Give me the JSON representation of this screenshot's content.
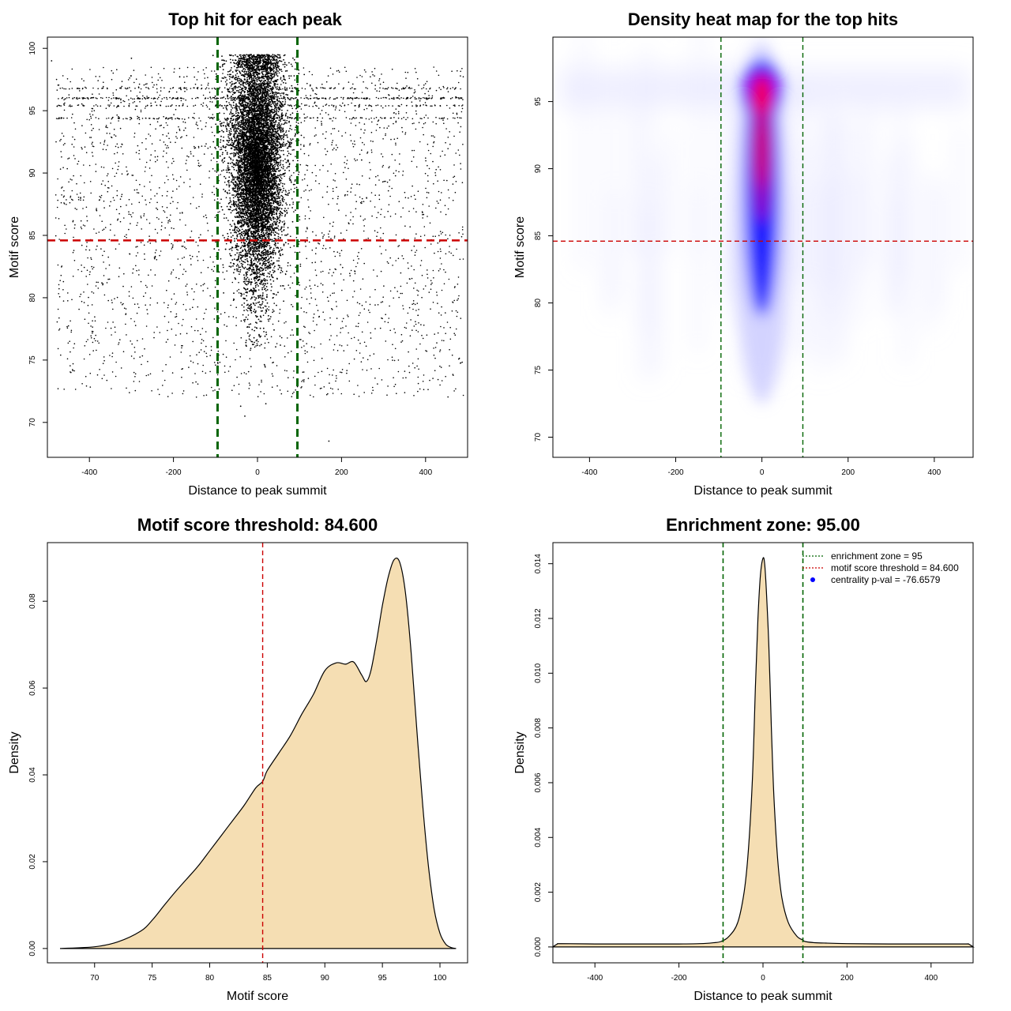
{
  "chart_data": [
    {
      "id": "scatter",
      "type": "scatter",
      "title": "Top hit for each peak",
      "xlabel": "Distance to peak summit",
      "ylabel": "Motif score",
      "xlim": [
        -500,
        500
      ],
      "ylim": [
        67.2,
        100.9
      ],
      "xticks": [
        -400,
        -200,
        0,
        200,
        400
      ],
      "yticks": [
        70,
        75,
        80,
        85,
        90,
        95,
        100
      ],
      "vlines": [
        -95,
        95
      ],
      "hline": 84.6,
      "point_color": "#000000",
      "vline_color": "#006400",
      "hline_color": "#cc0000",
      "cluster": {
        "x_center": 0,
        "x_spread": 38,
        "y_min": 76,
        "y_max": 99.5,
        "y_center": 91
      },
      "background_x_range": [
        -480,
        490
      ],
      "background_y_range": [
        72,
        98.5
      ],
      "striated_rows": [
        96.0,
        96.8,
        95.4,
        94.4
      ],
      "outliers": [
        [
          170,
          68.5
        ],
        [
          -30,
          70.5
        ],
        [
          -490,
          99
        ],
        [
          -300,
          99.2
        ],
        [
          -40,
          71.3
        ],
        [
          20,
          71.5
        ]
      ]
    },
    {
      "id": "heatmap",
      "type": "heatmap",
      "title": "Density heat map for the top hits",
      "xlabel": "Distance to peak summit",
      "ylabel": "Motif score",
      "xlim": [
        -485,
        490
      ],
      "ylim": [
        68.5,
        99.8
      ],
      "xticks": [
        -400,
        -200,
        0,
        200,
        400
      ],
      "yticks": [
        70,
        75,
        80,
        85,
        90,
        95
      ],
      "vlines": [
        -95,
        95
      ],
      "hline": 84.6,
      "color_scale": [
        "#ffffff",
        "#0000ff",
        "#ff0000"
      ],
      "vline_color": "#006400",
      "hline_color": "#cc0000"
    },
    {
      "id": "score_density",
      "type": "area",
      "title": "Motif score threshold: 84.600",
      "xlabel": "Motif score",
      "ylabel": "Density",
      "xlim": [
        65.9,
        102.4
      ],
      "ylim": [
        -0.0033,
        0.0935
      ],
      "xticks": [
        70,
        75,
        80,
        85,
        90,
        95,
        100
      ],
      "yticks": [
        0.0,
        0.02,
        0.04,
        0.06,
        0.08
      ],
      "ytick_labels": [
        "0.00",
        "0.02",
        "0.04",
        "0.06",
        "0.08"
      ],
      "vline": 84.6,
      "vline_color": "#cc0000",
      "fill_color": "#f5deb3",
      "x": [
        67,
        70,
        72,
        74,
        75,
        76,
        77,
        78,
        79,
        80,
        81,
        82,
        83,
        84,
        84.6,
        85,
        86,
        87,
        88,
        89,
        90,
        91,
        91.8,
        92.5,
        93.2,
        93.6,
        94,
        94.5,
        95,
        95.5,
        96,
        96.5,
        97,
        97.5,
        98,
        98.5,
        99,
        99.5,
        100,
        100.5,
        101,
        101.4
      ],
      "y": [
        0.0,
        0.0004,
        0.0015,
        0.004,
        0.0065,
        0.0098,
        0.013,
        0.016,
        0.019,
        0.0225,
        0.026,
        0.0295,
        0.033,
        0.037,
        0.0385,
        0.041,
        0.045,
        0.049,
        0.054,
        0.0585,
        0.064,
        0.0658,
        0.0655,
        0.066,
        0.063,
        0.0615,
        0.064,
        0.071,
        0.079,
        0.0855,
        0.0895,
        0.089,
        0.082,
        0.068,
        0.05,
        0.033,
        0.019,
        0.009,
        0.0035,
        0.001,
        0.0002,
        0.0
      ]
    },
    {
      "id": "distance_density",
      "type": "area",
      "title": "Enrichment zone: 95.00",
      "xlabel": "Distance to peak summit",
      "ylabel": "Density",
      "xlim": [
        -500,
        500
      ],
      "ylim": [
        -0.00058,
        0.01477
      ],
      "xticks": [
        -400,
        -200,
        0,
        200,
        400
      ],
      "yticks": [
        0.0,
        0.002,
        0.004,
        0.006,
        0.008,
        0.01,
        0.012,
        0.014
      ],
      "ytick_labels": [
        "0.000",
        "0.002",
        "0.004",
        "0.006",
        "0.008",
        "0.010",
        "0.012",
        "0.014"
      ],
      "vlines": [
        -95,
        95
      ],
      "vline_color": "#006400",
      "fill_color": "#f5deb3",
      "x": [
        -500,
        -490,
        -480,
        -400,
        -300,
        -200,
        -150,
        -120,
        -100,
        -80,
        -60,
        -45,
        -35,
        -25,
        -18,
        -12,
        -6,
        0,
        4,
        8,
        14,
        20,
        26,
        35,
        45,
        60,
        80,
        95,
        100,
        120,
        150,
        200,
        300,
        400,
        480,
        490,
        500
      ],
      "y": [
        0.0,
        0.0001,
        0.00012,
        0.00011,
        0.00011,
        0.00011,
        0.00012,
        0.00015,
        0.0002,
        0.0004,
        0.0009,
        0.002,
        0.0035,
        0.0062,
        0.0095,
        0.012,
        0.0136,
        0.0142,
        0.014,
        0.013,
        0.011,
        0.008,
        0.0055,
        0.0032,
        0.0018,
        0.0009,
        0.0004,
        0.00025,
        0.0002,
        0.00016,
        0.00014,
        0.00012,
        0.00011,
        0.00011,
        0.00011,
        0.0001,
        0.0
      ],
      "legend": {
        "placement": "top-right",
        "entries": [
          {
            "label": "enrichment zone = 95",
            "color": "#006400",
            "style": "dotted-line"
          },
          {
            "label": "motif score threshold = 84.600",
            "color": "#cc0000",
            "style": "dotted-line"
          },
          {
            "label": "centrality p-val = -76.6579",
            "color": "#0000ff",
            "style": "point"
          }
        ]
      }
    }
  ]
}
